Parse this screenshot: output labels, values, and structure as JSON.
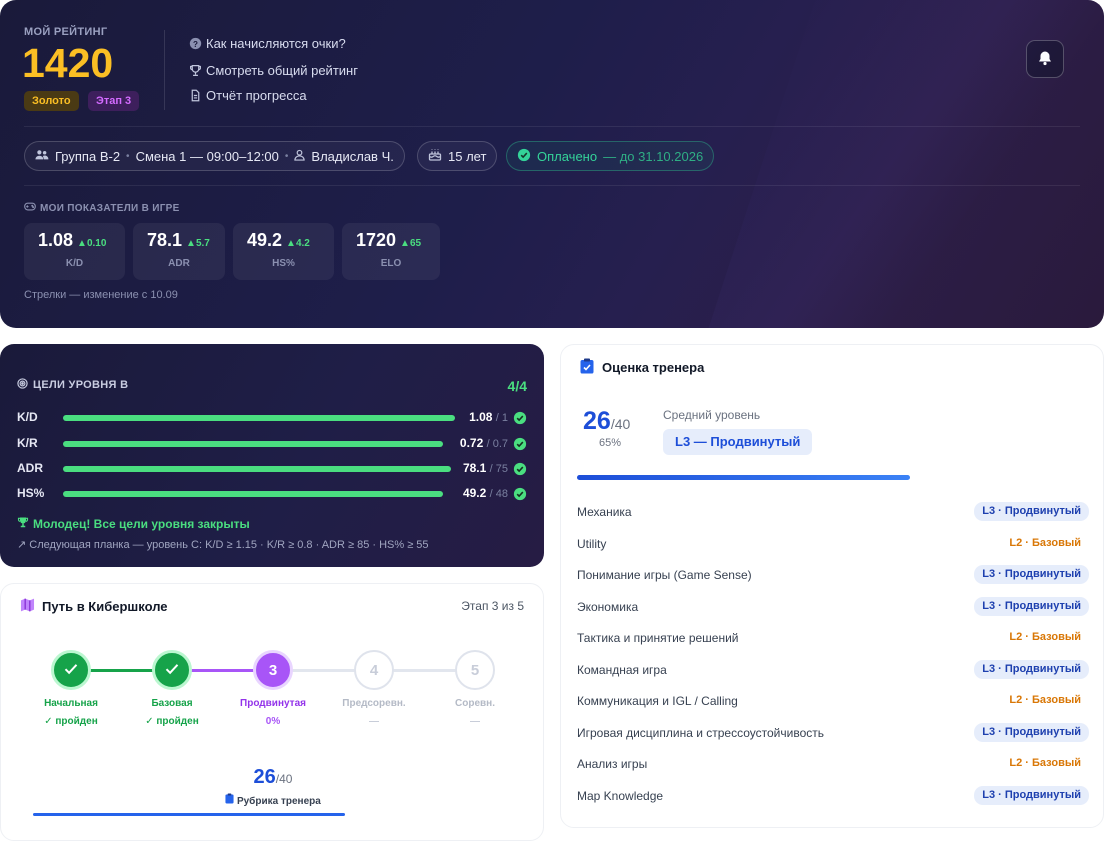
{
  "hero": {
    "rating_label": "МОЙ РЕЙТИНГ",
    "rating_value": "1420",
    "badge_league": "Золото",
    "badge_stage": "Этап 3",
    "links": [
      {
        "icon": "question-circle-icon",
        "label": "Как начисляются очки?"
      },
      {
        "icon": "trophy-icon",
        "label": "Смотреть общий рейтинг"
      },
      {
        "icon": "document-icon",
        "label": "Отчёт прогресса"
      }
    ],
    "info": {
      "group": "Группа В-2",
      "shift": "Смена 1 — 09:00–12:00",
      "coach": "Владислав Ч.",
      "age": "15 лет",
      "paid": "Оплачено",
      "paid_until": "— до 31.10.2026"
    },
    "metrics_label": "МОИ ПОКАЗАТЕЛИ В ИГРЕ",
    "metrics": [
      {
        "value": "1.08",
        "delta": "▲0.10",
        "name": "K/D"
      },
      {
        "value": "78.1",
        "delta": "▲5.7",
        "name": "ADR"
      },
      {
        "value": "49.2",
        "delta": "▲4.2",
        "name": "HS%"
      },
      {
        "value": "1720",
        "delta": "▲65",
        "name": "ELO"
      }
    ],
    "metrics_note": "Стрелки — изменение с 10.09"
  },
  "goals": {
    "title": "ЦЕЛИ УРОВНЯ B",
    "count": "4/4",
    "rows": [
      {
        "name": "K/D",
        "value": "1.08",
        "target": "/ 1",
        "progress": 1.0
      },
      {
        "name": "K/R",
        "value": "0.72",
        "target": "/ 0.7",
        "progress": 1.0
      },
      {
        "name": "ADR",
        "value": "78.1",
        "target": "/ 75",
        "progress": 1.0
      },
      {
        "name": "HS%",
        "value": "49.2",
        "target": "/ 48",
        "progress": 1.0
      }
    ],
    "done_text": "Молодец! Все цели уровня закрыты",
    "next_text": "Следующая планка — уровень C: K/D ≥ 1.15 · K/R ≥ 0.8 · ADR ≥ 85 · HS% ≥ 55"
  },
  "path": {
    "title": "Путь в Кибершколе",
    "stage": "Этап 3 из 5",
    "steps": [
      {
        "num": "1",
        "label": "Начальная",
        "sub": "✓ пройден",
        "state": "done"
      },
      {
        "num": "2",
        "label": "Базовая",
        "sub": "✓ пройден",
        "state": "done"
      },
      {
        "num": "3",
        "label": "Продвинутая",
        "sub": "0%",
        "state": "current"
      },
      {
        "num": "4",
        "label": "Предсоревн.",
        "sub": "—",
        "state": "todo"
      },
      {
        "num": "5",
        "label": "Соревн.",
        "sub": "—",
        "state": "todo"
      }
    ],
    "score": "26",
    "score_of": "/40",
    "rubric_label": "Рубрика тренера"
  },
  "coach": {
    "title": "Оценка тренера",
    "score": "26",
    "score_of": "/40",
    "percent": "65%",
    "level_label": "Средний уровень",
    "level": "L3 — Продвинутый",
    "skills": [
      {
        "name": "Механика",
        "tag": "L3 · Продвинутый",
        "level": "L3"
      },
      {
        "name": "Utility",
        "tag": "L2 · Базовый",
        "level": "L2"
      },
      {
        "name": "Понимание игры (Game Sense)",
        "tag": "L3 · Продвинутый",
        "level": "L3"
      },
      {
        "name": "Экономика",
        "tag": "L3 · Продвинутый",
        "level": "L3"
      },
      {
        "name": "Тактика и принятие решений",
        "tag": "L2 · Базовый",
        "level": "L2"
      },
      {
        "name": "Командная игра",
        "tag": "L3 · Продвинутый",
        "level": "L3"
      },
      {
        "name": "Коммуникация и IGL / Calling",
        "tag": "L2 · Базовый",
        "level": "L2"
      },
      {
        "name": "Игровая дисциплина и стрессоустойчивость",
        "tag": "L3 · Продвинутый",
        "level": "L3"
      },
      {
        "name": "Анализ игры",
        "tag": "L2 · Базовый",
        "level": "L2"
      },
      {
        "name": "Map Knowledge",
        "tag": "L3 · Продвинутый",
        "level": "L3"
      }
    ]
  },
  "colors": {
    "gold": "#fbbf24",
    "success": "#4ade80",
    "accent_purple": "#a855f7",
    "accent_blue": "#1d4ed8",
    "warning": "#d97706"
  }
}
